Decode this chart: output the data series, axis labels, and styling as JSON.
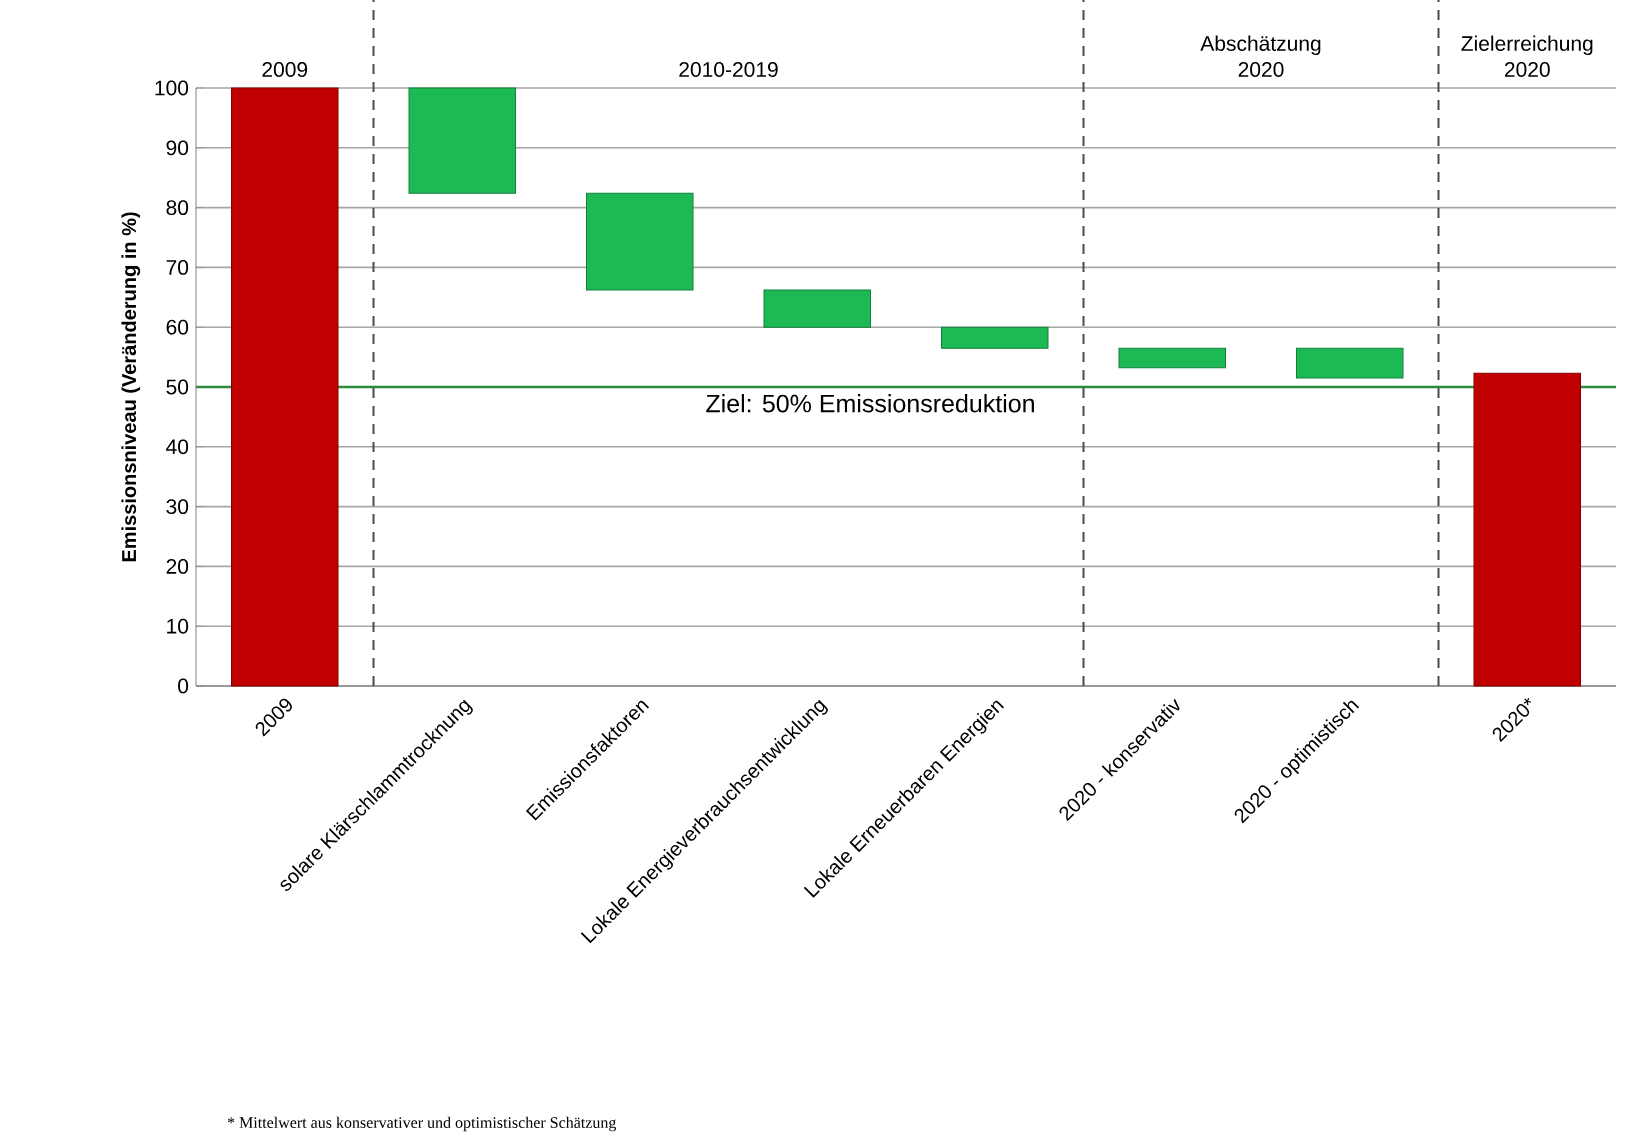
{
  "chart_data": {
    "type": "bar",
    "ylabel": "Emissionsniveau (Veränderung  in %)",
    "categories": [
      "2009",
      "solare Klärschlammtrocknung",
      "Emissionsfaktoren",
      "Lokale Energieverbrauchsentwicklung",
      "Lokale Erneuerbaren Energien",
      "2020 - konservativ",
      "2020 - optimistisch",
      "2020*"
    ],
    "values": [
      100,
      17.6,
      16.2,
      6.2,
      3.5,
      3.3,
      5.0,
      52.3
    ],
    "base": [
      0,
      82.4,
      66.2,
      60.0,
      56.5,
      53.2,
      51.5,
      0
    ],
    "colors": [
      "#c00000",
      "#1db954",
      "#1db954",
      "#1db954",
      "#1db954",
      "#1db954",
      "#1db954",
      "#c00000"
    ],
    "ylim": [
      0,
      100
    ],
    "yticks": [
      0,
      10,
      20,
      30,
      40,
      50,
      60,
      70,
      80,
      90,
      100
    ],
    "grid": "y",
    "ref_lines": [
      {
        "axis": "y",
        "value": 50,
        "label": "Ziel: 50% Emissionsreduktion",
        "color": "#2e8b3e"
      }
    ],
    "annotations": [
      "2009",
      "2010-2019",
      "Abschätzung 2020",
      "Zielerreichung 2020",
      "* Mittelwert aus konservativer und optimistischer Schätzung"
    ]
  }
}
